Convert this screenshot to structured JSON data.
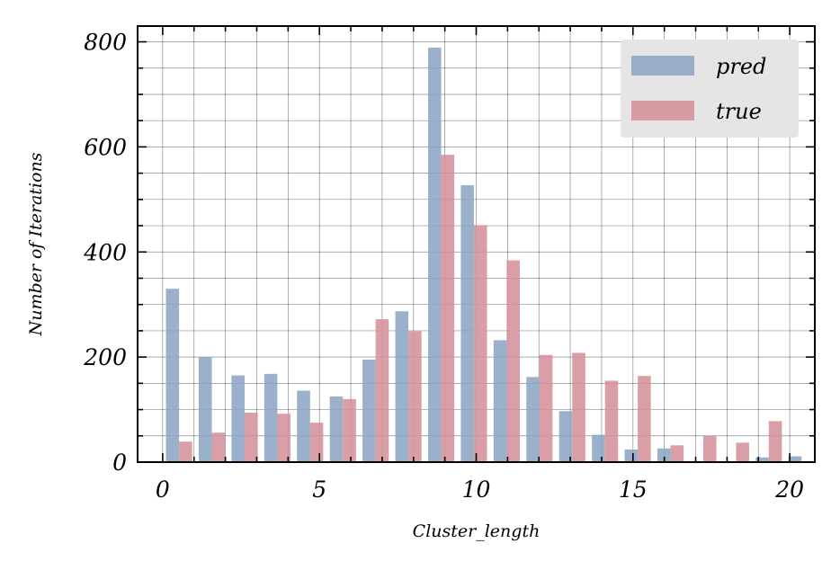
{
  "chart_data": {
    "type": "bar",
    "xlabel": "Cluster_length",
    "ylabel": "Number of Iterations",
    "xlim": [
      -0.8,
      20.8
    ],
    "ylim": [
      0,
      830
    ],
    "x_ticks": [
      0,
      5,
      10,
      15,
      20
    ],
    "y_ticks": [
      0,
      200,
      400,
      600,
      800
    ],
    "grid": true,
    "legend_position": "top-right",
    "bin_width": 1.045,
    "bin_start": 0,
    "series": [
      {
        "name": "pred",
        "color": "#8da5c4",
        "values": [
          330,
          200,
          165,
          168,
          136,
          125,
          195,
          287,
          789,
          527,
          232,
          162,
          97,
          52,
          24,
          26,
          0,
          0,
          9,
          11
        ]
      },
      {
        "name": "true",
        "color": "#d4919a",
        "values": [
          39,
          56,
          94,
          92,
          75,
          120,
          272,
          249,
          585,
          451,
          384,
          204,
          208,
          155,
          164,
          32,
          50,
          37,
          78,
          0
        ]
      }
    ]
  }
}
